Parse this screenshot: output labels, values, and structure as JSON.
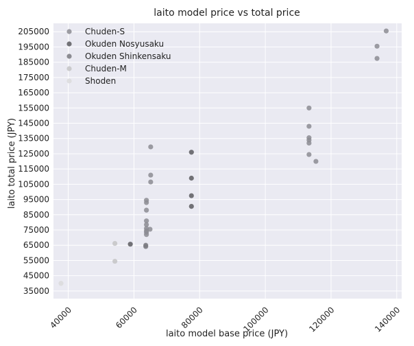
{
  "chart_data": {
    "type": "scatter",
    "title": "laito model price vs total price",
    "xlabel": "laito model base price (JPY)",
    "ylabel": "laito total price (JPY)",
    "xlim": [
      35500,
      141500
    ],
    "ylim": [
      30000,
      210500
    ],
    "x_ticks": [
      40000,
      60000,
      80000,
      100000,
      120000,
      140000
    ],
    "y_ticks": [
      35000,
      45000,
      55000,
      65000,
      75000,
      85000,
      95000,
      105000,
      115000,
      125000,
      135000,
      145000,
      155000,
      165000,
      175000,
      185000,
      195000,
      205000
    ],
    "grid": true,
    "legend_position": "top-left",
    "plot_background": "#eaeaf2",
    "series": [
      {
        "name": "Chuden-S",
        "color": "#8c8c93",
        "points": [
          [
            63800,
            94500
          ],
          [
            63800,
            93000
          ],
          [
            63800,
            88000
          ],
          [
            63800,
            81000
          ],
          [
            63800,
            78500
          ],
          [
            63800,
            76000
          ],
          [
            63800,
            74500
          ],
          [
            63800,
            73500
          ],
          [
            63800,
            72000
          ],
          [
            64900,
            75500
          ],
          [
            65100,
            111000
          ],
          [
            65100,
            106500
          ],
          [
            65100,
            129500
          ],
          [
            113300,
            155000
          ],
          [
            113300,
            143000
          ],
          [
            113300,
            135500
          ],
          [
            113300,
            134000
          ],
          [
            113300,
            132000
          ],
          [
            113300,
            124500
          ],
          [
            115400,
            120000
          ],
          [
            134000,
            195500
          ],
          [
            134000,
            187500
          ],
          [
            136800,
            205500
          ]
        ]
      },
      {
        "name": "Okuden Nosyusaku",
        "color": "#5c5c60",
        "points": [
          [
            58900,
            65700
          ],
          [
            77500,
            126000
          ],
          [
            77500,
            109000
          ],
          [
            77500,
            97500
          ],
          [
            77500,
            90500
          ]
        ]
      },
      {
        "name": "Okuden Shinkensaku",
        "color": "#7a7a80",
        "points": [
          [
            63600,
            65000
          ],
          [
            63600,
            64200
          ]
        ]
      },
      {
        "name": "Chuden-M",
        "color": "#c4c4c6",
        "points": [
          [
            54200,
            66200
          ],
          [
            54200,
            54500
          ]
        ]
      },
      {
        "name": "Shoden",
        "color": "#dadadc",
        "points": [
          [
            37800,
            40000
          ]
        ]
      }
    ]
  }
}
